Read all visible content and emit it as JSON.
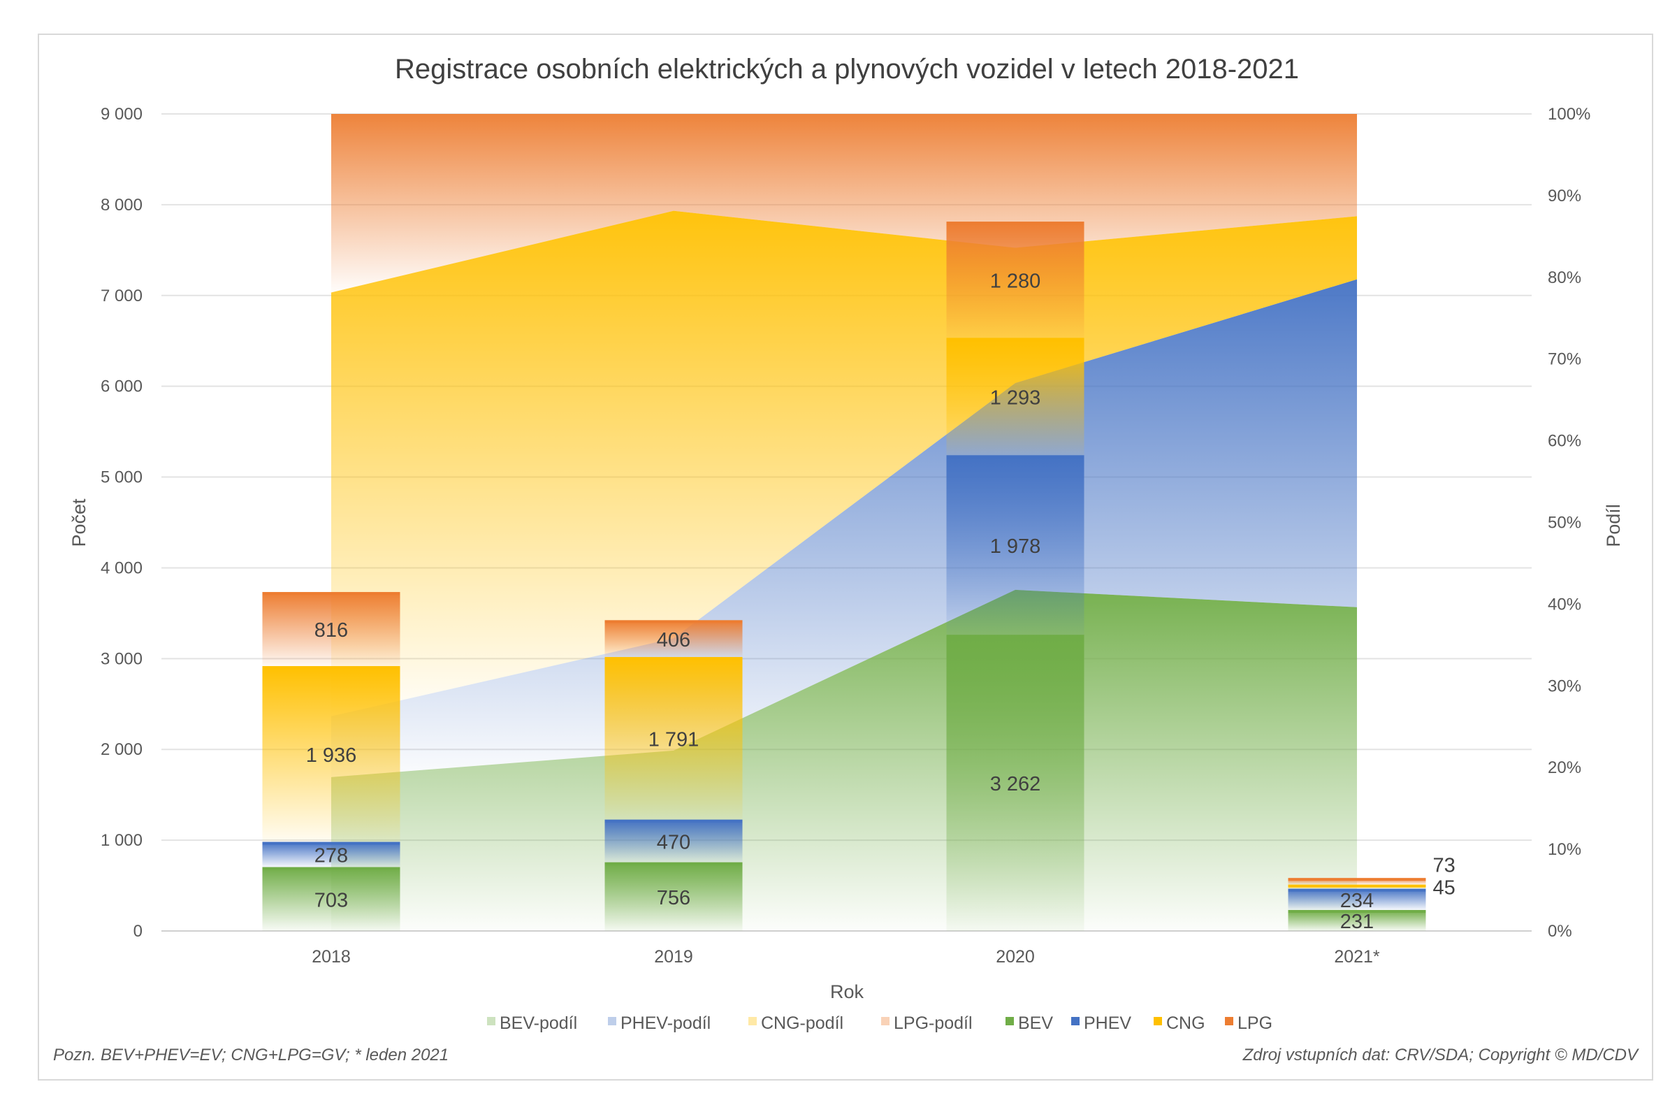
{
  "chart_data": {
    "type": "bar",
    "title": "Registrace osobních elektrických a plynových vozidel v letech 2018-2021",
    "xlabel": "Rok",
    "ylabel": "Počet",
    "y2label": "Podíl",
    "categories": [
      "2018",
      "2019",
      "2020",
      "2021*"
    ],
    "ylim": [
      0,
      9000
    ],
    "yticks": [
      "0",
      "1 000",
      "2 000",
      "3 000",
      "4 000",
      "5 000",
      "6 000",
      "7 000",
      "8 000",
      "9 000"
    ],
    "y2lim": [
      0,
      100
    ],
    "y2ticks": [
      "0%",
      "10%",
      "20%",
      "30%",
      "40%",
      "50%",
      "60%",
      "70%",
      "80%",
      "90%",
      "100%"
    ],
    "grid": true,
    "legend": "bottom",
    "series": [
      {
        "name": "BEV",
        "type": "stacked-bar",
        "color": "#70ad47",
        "values": [
          703,
          756,
          3262,
          231
        ],
        "labels": [
          "703",
          "756",
          "3 262",
          "231"
        ]
      },
      {
        "name": "PHEV",
        "type": "stacked-bar",
        "color": "#4472c4",
        "values": [
          278,
          470,
          1978,
          234
        ],
        "labels": [
          "278",
          "470",
          "1 978",
          "234"
        ]
      },
      {
        "name": "CNG",
        "type": "stacked-bar",
        "color": "#ffc000",
        "values": [
          1936,
          1791,
          1293,
          45
        ],
        "labels": [
          "1 936",
          "1 791",
          "1 293",
          "45"
        ]
      },
      {
        "name": "LPG",
        "type": "stacked-bar",
        "color": "#ed7d31",
        "values": [
          816,
          406,
          1280,
          73
        ],
        "labels": [
          "816",
          "406",
          "1 280",
          "73"
        ]
      }
    ],
    "share_series": [
      {
        "name": "BEV-podíl",
        "type": "stacked-area-percent",
        "color": "#70ad47"
      },
      {
        "name": "PHEV-podíl",
        "type": "stacked-area-percent",
        "color": "#4472c4"
      },
      {
        "name": "CNG-podíl",
        "type": "stacked-area-percent",
        "color": "#ffc000"
      },
      {
        "name": "LPG-podíl",
        "type": "stacked-area-percent",
        "color": "#ed7d31"
      }
    ],
    "legend_order": [
      "BEV-podíl",
      "PHEV-podíl",
      "CNG-podíl",
      "LPG-podíl",
      "BEV",
      "PHEV",
      "CNG",
      "LPG"
    ]
  },
  "footer": {
    "note": "Pozn. BEV+PHEV=EV; CNG+LPG=GV; * leden 2021",
    "source": "Zdroj vstupních dat: CRV/SDA; Copyright © MD/CDV"
  }
}
